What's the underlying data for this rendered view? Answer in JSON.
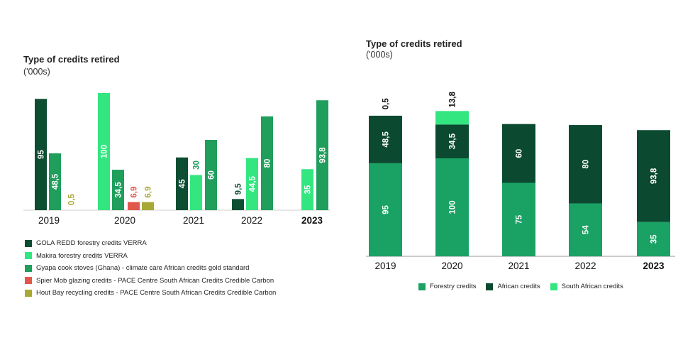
{
  "chart_data": [
    {
      "type": "bar",
      "title": "Type of credits retired",
      "subtitle": "('000s)",
      "categories": [
        "2019",
        "2020",
        "2021",
        "2022",
        "2023"
      ],
      "ylim": [
        0,
        100
      ],
      "series": [
        {
          "name": "GOLA REDD forestry credits VERRA",
          "color": "#0d4d32",
          "values": [
            95,
            null,
            45,
            9.5,
            null
          ],
          "labels": [
            "95",
            "",
            "45",
            "9,5",
            ""
          ]
        },
        {
          "name": "Makira forestry credits VERRA",
          "color": "#33e680",
          "values": [
            null,
            100,
            30,
            44.5,
            35
          ],
          "labels": [
            "",
            "100",
            "30",
            "44,5",
            "35"
          ]
        },
        {
          "name": "Gyapa cook stoves (Ghana) - climate care African credits gold standard",
          "color": "#1f9e5c",
          "values": [
            48.5,
            34.5,
            60,
            80,
            93.8
          ],
          "labels": [
            "48,5",
            "34,5",
            "60",
            "80",
            "93,8"
          ]
        },
        {
          "name": "Spier Mob glazing credits - PACE Centre South African Credits Credible Carbon",
          "color": "#e2574c",
          "values": [
            null,
            6.9,
            null,
            null,
            null
          ],
          "labels": [
            "",
            "6,9",
            "",
            "",
            ""
          ]
        },
        {
          "name": "Hout Bay recycling credits - PACE Centre South African Credits Credible Carbon",
          "color": "#a9a835",
          "values": [
            0.5,
            6.9,
            null,
            null,
            null
          ],
          "labels": [
            "0,5",
            "6,9",
            "",
            "",
            ""
          ]
        }
      ]
    },
    {
      "type": "bar",
      "stacked": true,
      "title": "Type of credits retired",
      "subtitle": "('000s)",
      "categories": [
        "2019",
        "2020",
        "2021",
        "2022",
        "2023"
      ],
      "ylim": [
        0,
        150
      ],
      "series": [
        {
          "name": "Forestry credits",
          "color": "#1aa264",
          "values": [
            95,
            100,
            75,
            54,
            35
          ],
          "labels": [
            "95",
            "100",
            "75",
            "54",
            "35"
          ]
        },
        {
          "name": "African credits",
          "color": "#0b4a30",
          "values": [
            48.5,
            34.5,
            60,
            80,
            93.8
          ],
          "labels": [
            "48,5",
            "34,5",
            "60",
            "80",
            "93,8"
          ]
        },
        {
          "name": "South African credits",
          "color": "#33e680",
          "values": [
            0.5,
            13.8,
            0,
            0,
            0
          ],
          "labels": [
            "0,5",
            "13,8",
            "",
            "",
            ""
          ]
        }
      ]
    }
  ]
}
